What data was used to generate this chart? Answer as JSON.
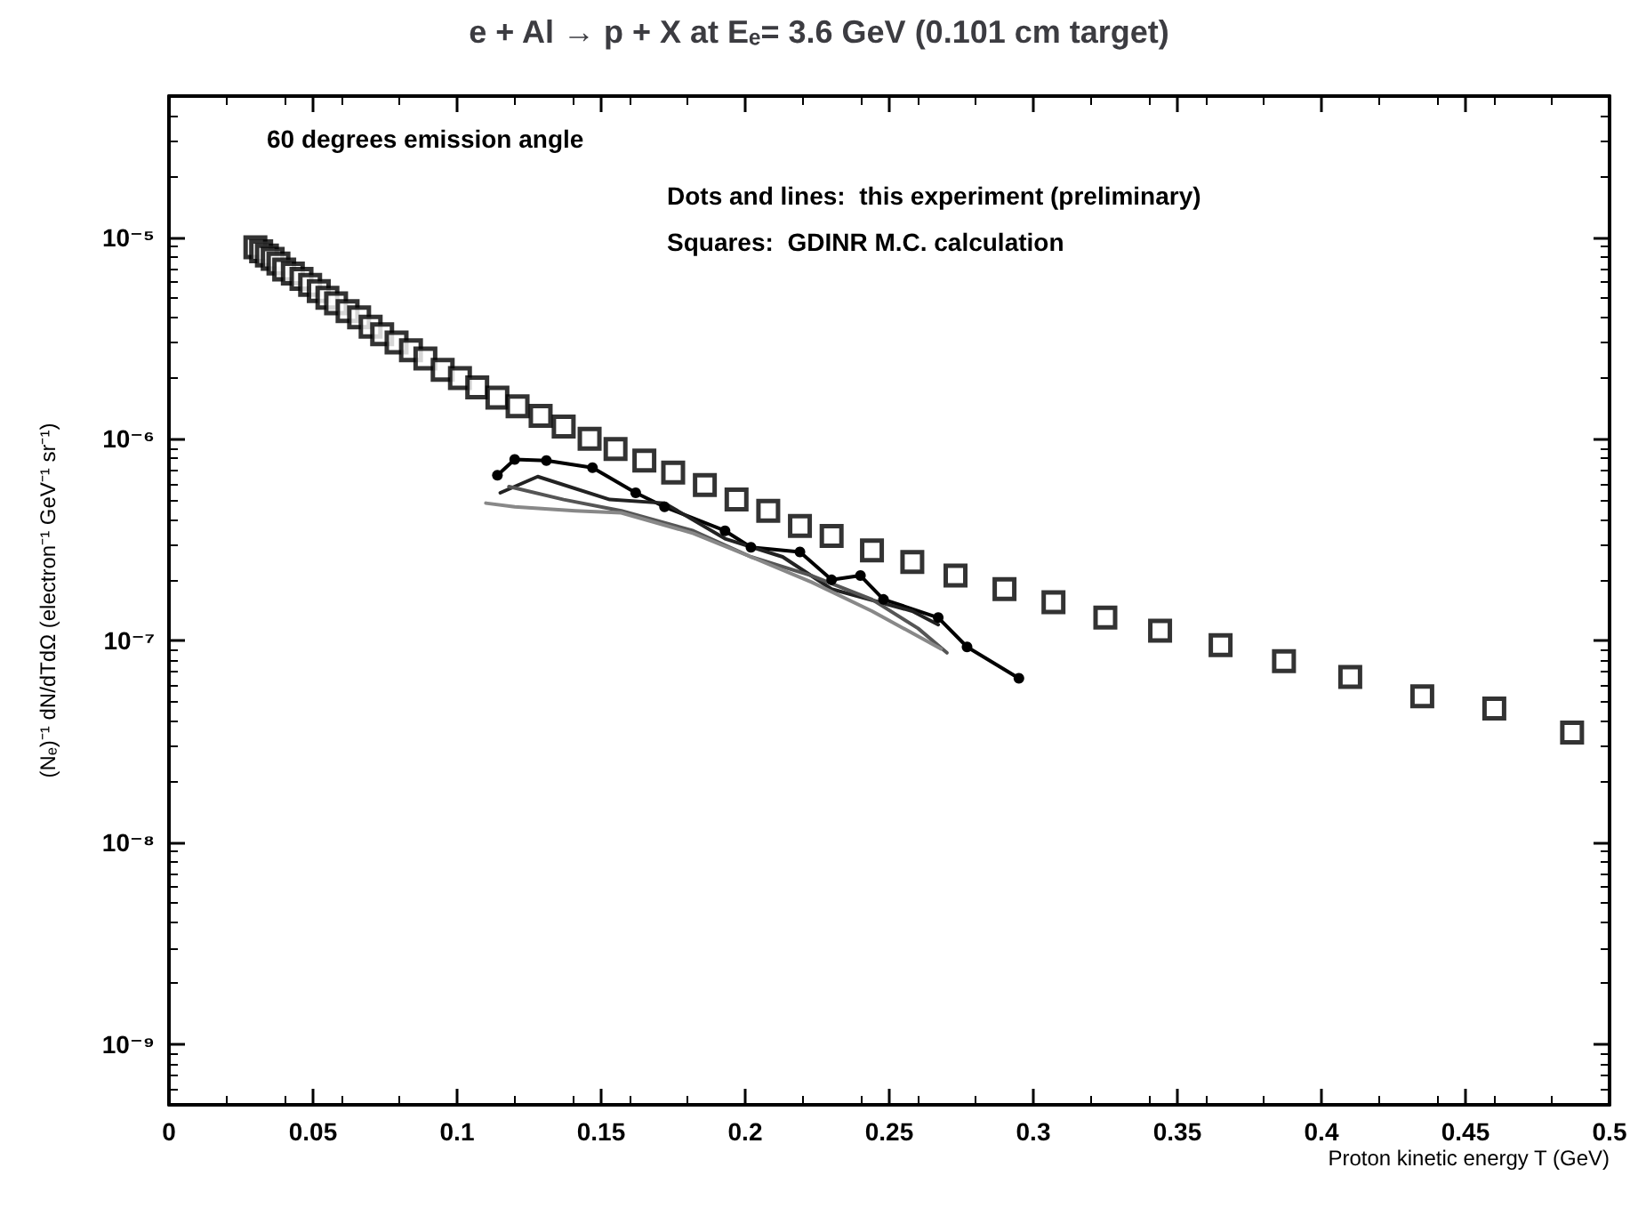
{
  "chart_data": {
    "type": "line",
    "title": "e + Al → p + X at Eₑ= 3.6 GeV (0.101 cm target)",
    "xlabel": "Proton kinetic energy T (GeV)",
    "ylabel": "(Nₑ)⁻¹ dN/dTdΩ (electron⁻¹ GeV⁻¹ sr⁻¹)",
    "annotations": [
      "60 degrees emission angle",
      "Dots and lines:  this experiment (preliminary)",
      "Squares:  GDINR M.C. calculation"
    ],
    "log": "y",
    "grid": false,
    "xlim": [
      0,
      0.5
    ],
    "xticks": [
      0,
      0.05,
      0.1,
      0.15,
      0.2,
      0.25,
      0.3,
      0.35,
      0.4,
      0.45,
      0.5
    ],
    "ylim": [
      5e-10,
      5e-05
    ],
    "yticks": [
      {
        "value": 1e-09,
        "label": "10⁻⁹"
      },
      {
        "value": 1e-08,
        "label": "10⁻⁸"
      },
      {
        "value": 1e-07,
        "label": "10⁻⁷"
      },
      {
        "value": 1e-06,
        "label": "10⁻⁶"
      },
      {
        "value": 1e-05,
        "label": "10⁻⁵"
      }
    ],
    "series": [
      {
        "type": "scatter",
        "marker": "square",
        "color": "#000000",
        "x": [
          0.03,
          0.032,
          0.034,
          0.036,
          0.038,
          0.04,
          0.043,
          0.046,
          0.049,
          0.052,
          0.055,
          0.058,
          0.062,
          0.066,
          0.07,
          0.074,
          0.079,
          0.084,
          0.089,
          0.095,
          0.101,
          0.107,
          0.114,
          0.121,
          0.129,
          0.137,
          0.146,
          0.155,
          0.165,
          0.175,
          0.186,
          0.197,
          0.208,
          0.219,
          0.23,
          0.244,
          0.258,
          0.273,
          0.29,
          0.307,
          0.325,
          0.344,
          0.365,
          0.387,
          0.41,
          0.435,
          0.46,
          0.487
        ],
        "values": [
          8.9e-06,
          8.5e-06,
          8.1e-06,
          7.8e-06,
          7.4e-06,
          6.9e-06,
          6.6e-06,
          6.2e-06,
          5.8e-06,
          5.4e-06,
          5e-06,
          4.7e-06,
          4.3e-06,
          4e-06,
          3.6e-06,
          3.3e-06,
          3e-06,
          2.75e-06,
          2.5e-06,
          2.2e-06,
          2e-06,
          1.8e-06,
          1.6e-06,
          1.45e-06,
          1.3e-06,
          1.15e-06,
          1e-06,
          8.9e-07,
          7.8e-07,
          6.8e-07,
          5.9e-07,
          5e-07,
          4.4e-07,
          3.7e-07,
          3.3e-07,
          2.8e-07,
          2.45e-07,
          2.1e-07,
          1.8e-07,
          1.55e-07,
          1.3e-07,
          1.12e-07,
          9.5e-08,
          7.9e-08,
          6.6e-08,
          5.3e-08,
          4.6e-08,
          3.5e-08
        ]
      },
      {
        "marker": "circle",
        "color": "#000000",
        "x": [
          0.114,
          0.12,
          0.131,
          0.147,
          0.162,
          0.172,
          0.193,
          0.202,
          0.219,
          0.23,
          0.24,
          0.248,
          0.267,
          0.277,
          0.295
        ],
        "values": [
          6.6e-07,
          7.9e-07,
          7.8e-07,
          7.2e-07,
          5.4e-07,
          4.6e-07,
          3.5e-07,
          2.9e-07,
          2.75e-07,
          2e-07,
          2.1e-07,
          1.6e-07,
          1.3e-07,
          9.3e-08,
          6.5e-08
        ]
      },
      {
        "marker": "none",
        "color": "#222222",
        "x": [
          0.115,
          0.128,
          0.153,
          0.172,
          0.193,
          0.213,
          0.23,
          0.258,
          0.267
        ],
        "values": [
          5.4e-07,
          6.5e-07,
          5e-07,
          4.8e-07,
          3.2e-07,
          2.6e-07,
          1.8e-07,
          1.4e-07,
          1.2e-07
        ]
      },
      {
        "marker": "none",
        "color": "#555555",
        "x": [
          0.118,
          0.137,
          0.157,
          0.182,
          0.202,
          0.223,
          0.244,
          0.26,
          0.27
        ],
        "values": [
          5.8e-07,
          5e-07,
          4.4e-07,
          3.5e-07,
          2.6e-07,
          2.1e-07,
          1.6e-07,
          1.15e-07,
          8.7e-08
        ]
      },
      {
        "marker": "none",
        "color": "#888888",
        "x": [
          0.11,
          0.12,
          0.141,
          0.157,
          0.182,
          0.202,
          0.223,
          0.244,
          0.268
        ],
        "values": [
          4.8e-07,
          4.6e-07,
          4.4e-07,
          4.3e-07,
          3.4e-07,
          2.6e-07,
          1.95e-07,
          1.4e-07,
          9.1e-08
        ]
      }
    ]
  }
}
